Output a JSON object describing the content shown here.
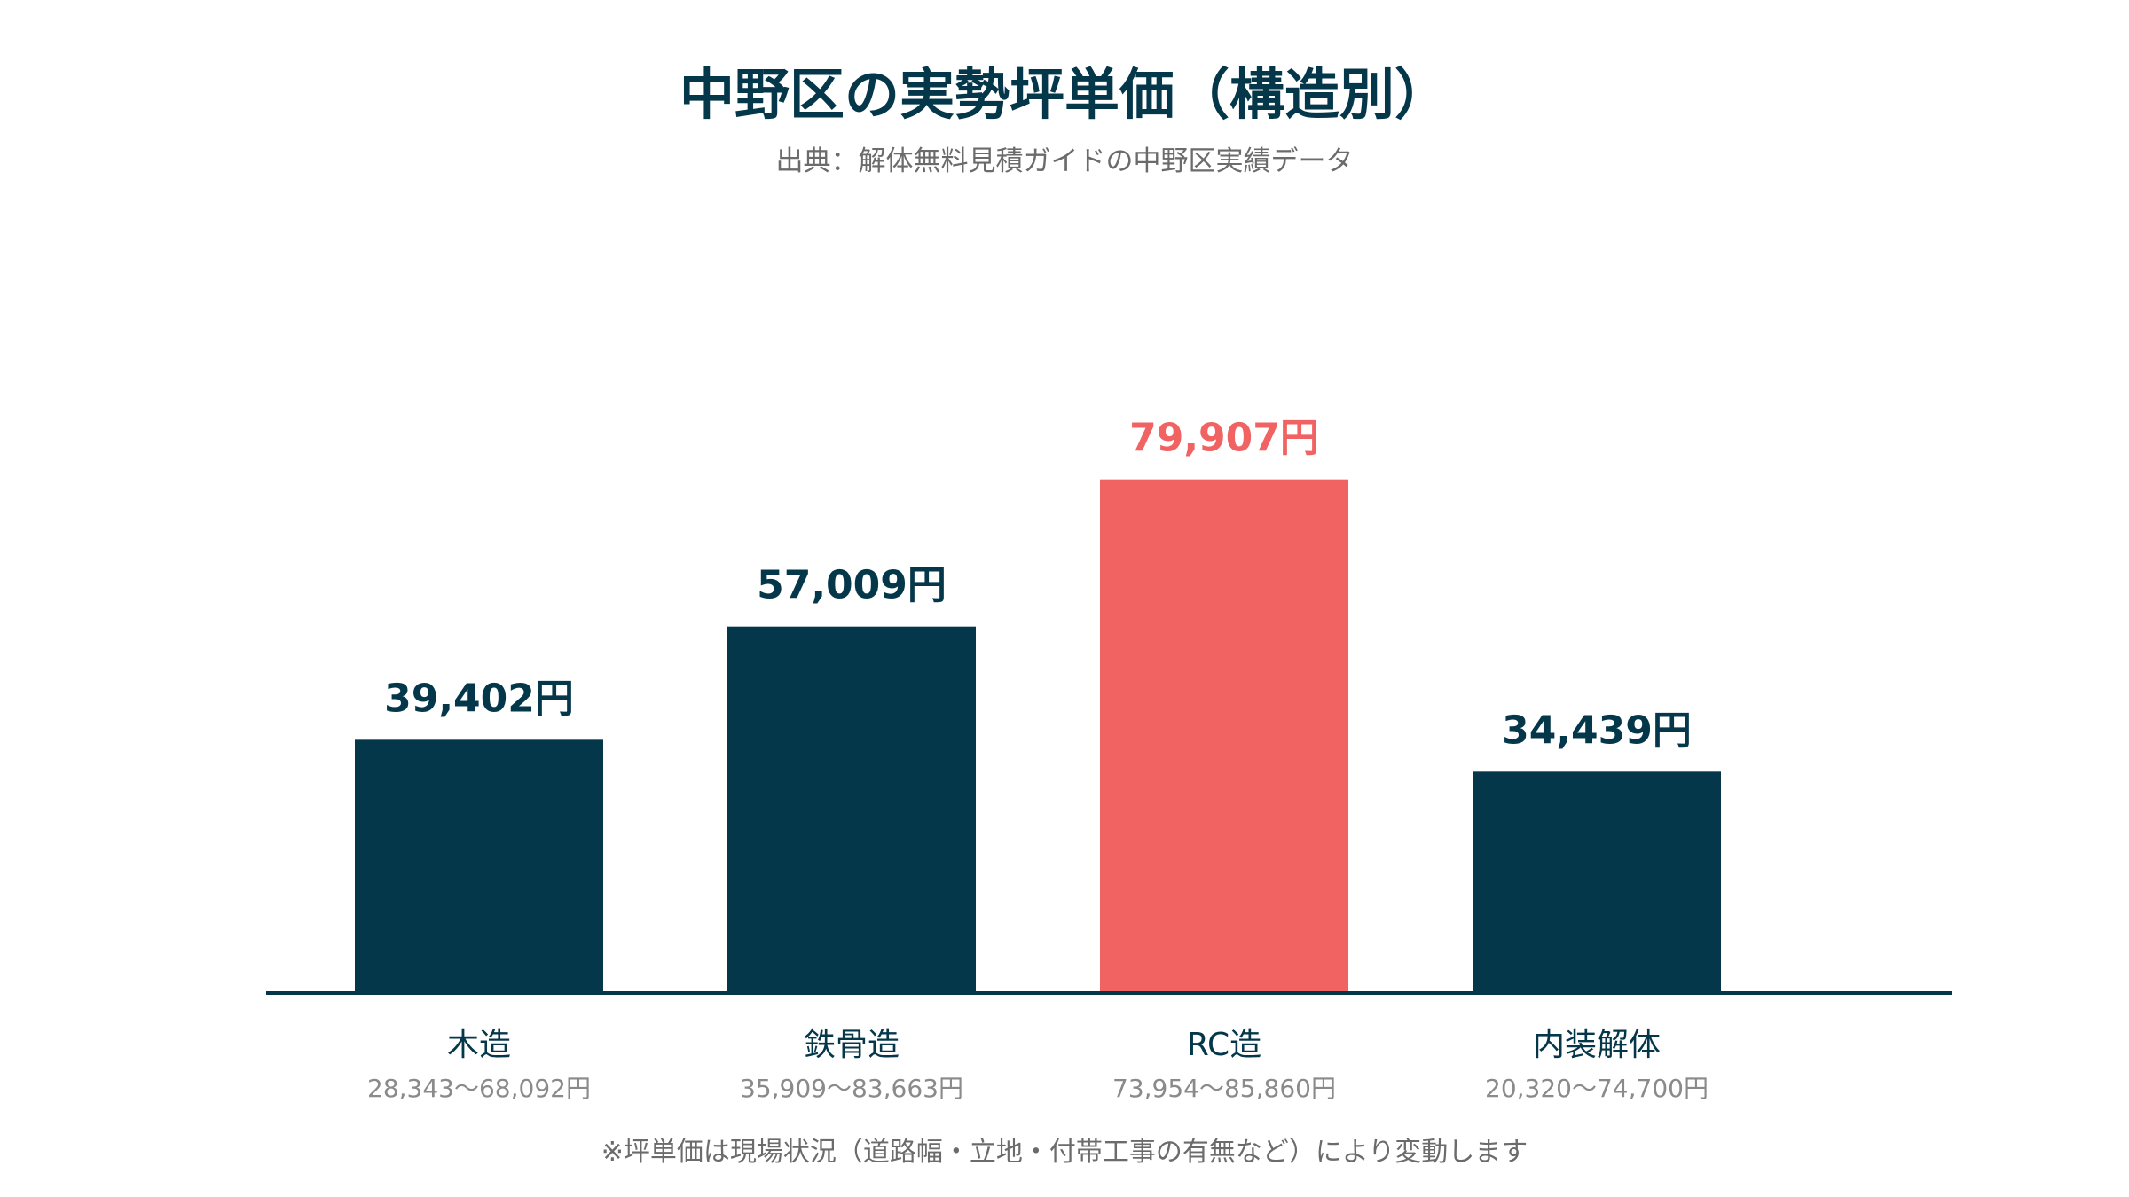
{
  "title": "中野区の実勢坪単価（構造別）",
  "subtitle": "出典：解体無料見積ガイドの中野区実績データ",
  "footnote": "※坪単価は現場状況（道路幅・立地・付帯工事の有無など）により変動します",
  "colors": {
    "default_bar": "#05374b",
    "highlight_bar": "#f16262",
    "axis": "#05374b",
    "range_text": "#8a8a8a"
  },
  "chart_data": {
    "type": "bar",
    "categories": [
      "木造",
      "鉄骨造",
      "RC造",
      "内装解体"
    ],
    "values": [
      39402,
      57009,
      79907,
      34439
    ],
    "value_labels": [
      "39,402円",
      "57,009円",
      "79,907円",
      "34,439円"
    ],
    "ranges": [
      "28,343〜68,092円",
      "35,909〜83,663円",
      "73,954〜85,860円",
      "20,320〜74,700円"
    ],
    "highlight_index": 2,
    "ylim": [
      0,
      80000
    ],
    "grid": false,
    "legend": "none"
  }
}
